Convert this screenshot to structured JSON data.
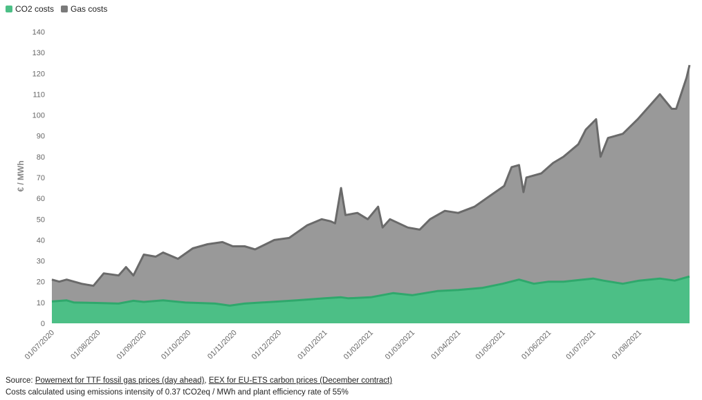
{
  "chart_data": {
    "type": "area",
    "ylabel": "€ / MWh",
    "ylim": [
      0,
      140
    ],
    "yticks": [
      0,
      10,
      20,
      30,
      40,
      50,
      60,
      70,
      80,
      90,
      100,
      110,
      120,
      130,
      140
    ],
    "x_tick_labels": [
      "01/07/2020",
      "01/08/2020",
      "01/09/2020",
      "01/10/2020",
      "01/11/2020",
      "01/12/2020",
      "01/01/2021",
      "01/02/2021",
      "01/03/2021",
      "01/04/2021",
      "01/05/2021",
      "01/06/2021",
      "01/07/2021",
      "01/08/2021"
    ],
    "x_tick_days": [
      0,
      31,
      62,
      92,
      123,
      153,
      184,
      215,
      243,
      274,
      304,
      335,
      365,
      396
    ],
    "stacked": true,
    "series": [
      {
        "name": "CO2 costs",
        "color": "#4cbf86",
        "points": [
          [
            0,
            10.5
          ],
          [
            10,
            11
          ],
          [
            15,
            10
          ],
          [
            30,
            9.8
          ],
          [
            45,
            9.5
          ],
          [
            55,
            10.8
          ],
          [
            62,
            10.3
          ],
          [
            75,
            11
          ],
          [
            90,
            10
          ],
          [
            110,
            9.5
          ],
          [
            120,
            8.5
          ],
          [
            130,
            9.5
          ],
          [
            153,
            10.5
          ],
          [
            165,
            11
          ],
          [
            184,
            12
          ],
          [
            195,
            12.5
          ],
          [
            200,
            12
          ],
          [
            215,
            12.5
          ],
          [
            230,
            14.5
          ],
          [
            243,
            13.5
          ],
          [
            260,
            15.5
          ],
          [
            274,
            16
          ],
          [
            290,
            17
          ],
          [
            304,
            19
          ],
          [
            315,
            21
          ],
          [
            325,
            19
          ],
          [
            335,
            20
          ],
          [
            345,
            20
          ],
          [
            358,
            21
          ],
          [
            365,
            21.5
          ],
          [
            372,
            20.5
          ],
          [
            385,
            19
          ],
          [
            396,
            20.5
          ],
          [
            410,
            21.5
          ],
          [
            420,
            20.5
          ],
          [
            430,
            22.5
          ]
        ]
      },
      {
        "name": "Gas costs",
        "color": "#7a7a7a",
        "points": [
          [
            0,
            21
          ],
          [
            5,
            20
          ],
          [
            10,
            21
          ],
          [
            20,
            19
          ],
          [
            28,
            18
          ],
          [
            35,
            24
          ],
          [
            45,
            23
          ],
          [
            50,
            27
          ],
          [
            55,
            23
          ],
          [
            62,
            33
          ],
          [
            70,
            32
          ],
          [
            75,
            34
          ],
          [
            85,
            31
          ],
          [
            95,
            36
          ],
          [
            105,
            38
          ],
          [
            115,
            39
          ],
          [
            122,
            37
          ],
          [
            130,
            37
          ],
          [
            137,
            35.5
          ],
          [
            150,
            40
          ],
          [
            160,
            41
          ],
          [
            172,
            47
          ],
          [
            182,
            50
          ],
          [
            188,
            49
          ],
          [
            191,
            48
          ],
          [
            195,
            65
          ],
          [
            198,
            52
          ],
          [
            206,
            53
          ],
          [
            213,
            50
          ],
          [
            220,
            56
          ],
          [
            223,
            46
          ],
          [
            228,
            50
          ],
          [
            240,
            46
          ],
          [
            248,
            45
          ],
          [
            255,
            50
          ],
          [
            265,
            54
          ],
          [
            274,
            53
          ],
          [
            285,
            56
          ],
          [
            295,
            61
          ],
          [
            305,
            66
          ],
          [
            310,
            75
          ],
          [
            315,
            76
          ],
          [
            318,
            63
          ],
          [
            320,
            70
          ],
          [
            330,
            72
          ],
          [
            338,
            77
          ],
          [
            345,
            80
          ],
          [
            355,
            86
          ],
          [
            360,
            93
          ],
          [
            367,
            98
          ],
          [
            370,
            80
          ],
          [
            375,
            89
          ],
          [
            385,
            91
          ],
          [
            395,
            98
          ],
          [
            405,
            106
          ],
          [
            410,
            110
          ],
          [
            418,
            103
          ],
          [
            421,
            103
          ],
          [
            428,
            118
          ],
          [
            430,
            124
          ]
        ]
      }
    ],
    "legend_position": "top-left"
  },
  "source": {
    "prefix": "Source: ",
    "link1": "Powernext for TTF fossil gas prices (day ahead)",
    "separator": ", ",
    "link2": "EEX for EU-ETS carbon prices (December contract)",
    "note": "Costs calculated using emissions intensity of 0.37 tCO2eq / MWh and plant efficiency rate of 55%"
  }
}
